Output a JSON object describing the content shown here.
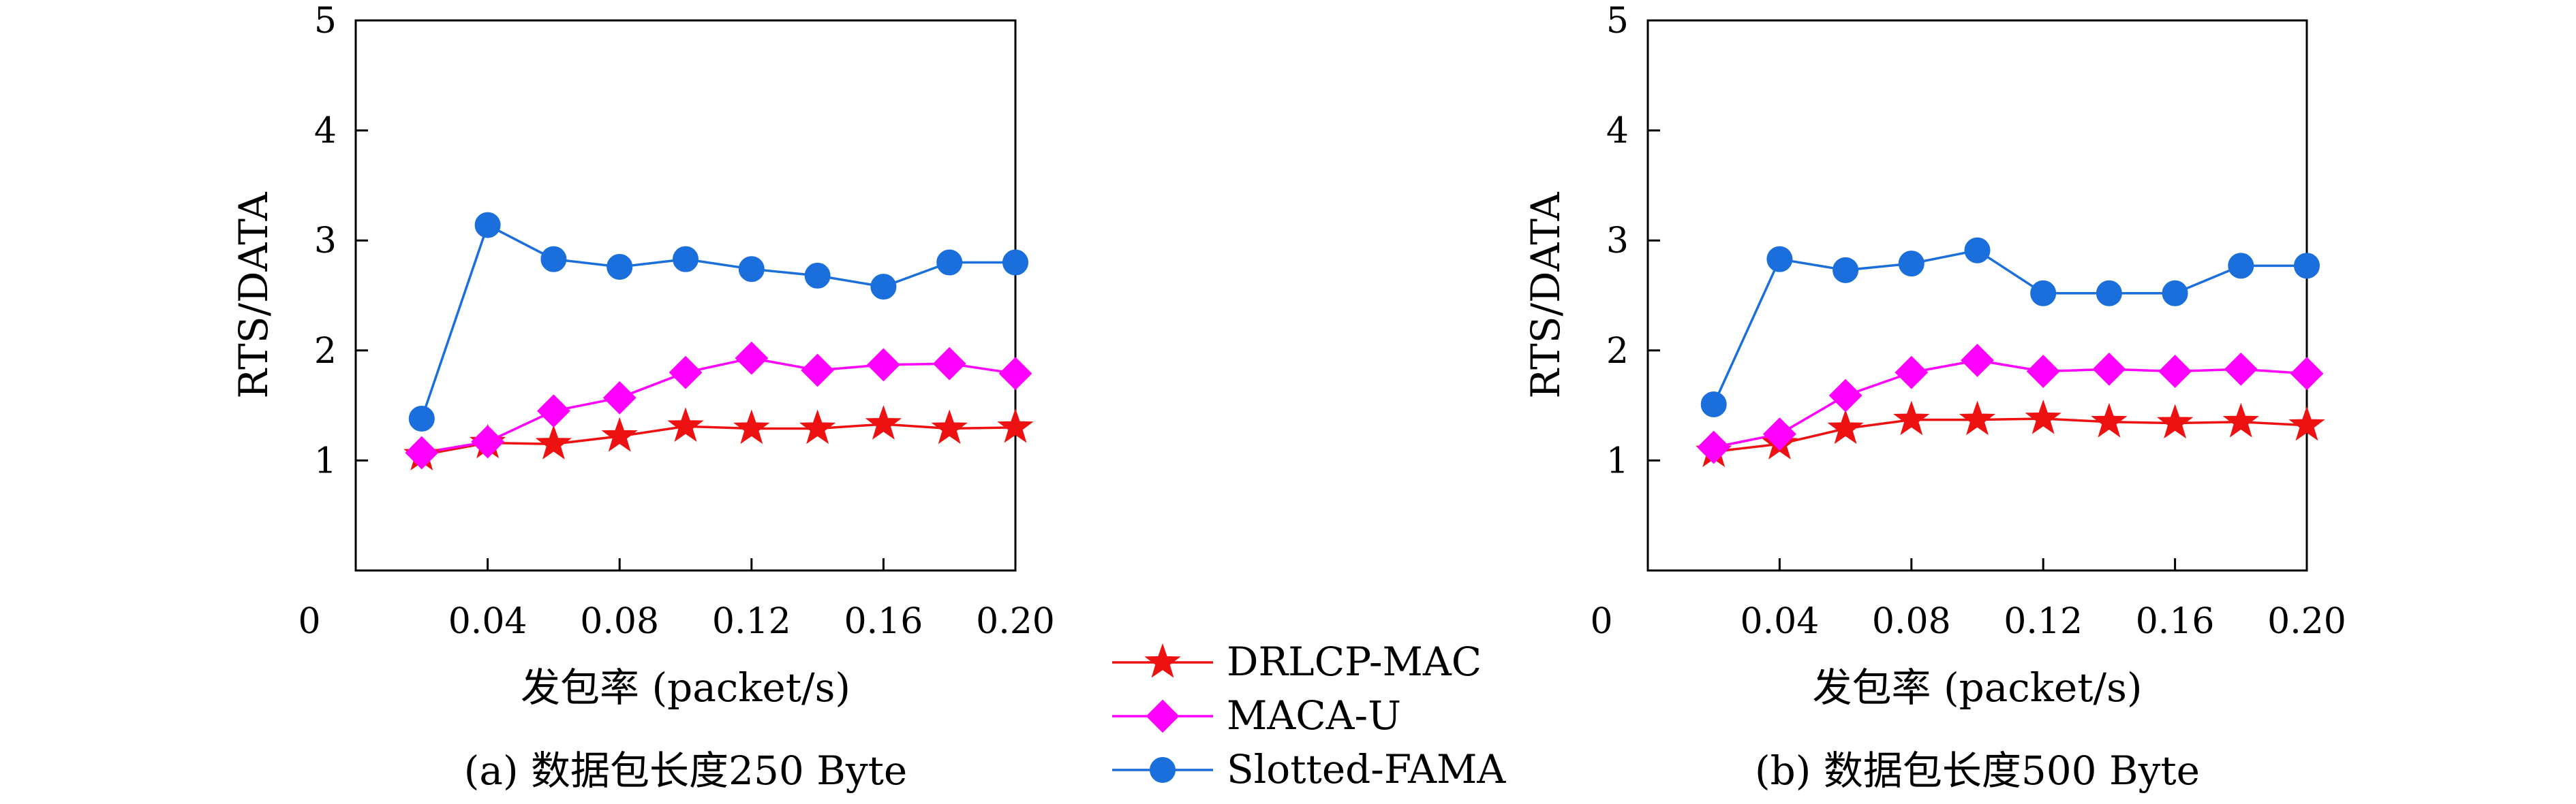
{
  "chart_data": [
    {
      "type": "line",
      "panel_caption": "(a) 数据包长度250 Byte",
      "xlabel": "发包率 (packet/s)",
      "ylabel": "RTS/DATA",
      "xlim": [
        0,
        0.2
      ],
      "ylim": [
        0,
        5
      ],
      "x_ticks": [
        "0",
        "0.04",
        "0.08",
        "0.12",
        "0.16",
        "0.20"
      ],
      "x_tick_values": [
        0,
        0.04,
        0.08,
        0.12,
        0.16,
        0.2
      ],
      "y_ticks": [
        "1",
        "2",
        "3",
        "4",
        "5"
      ],
      "y_tick_values": [
        1,
        2,
        3,
        4,
        5
      ],
      "x_origin_label": "0",
      "grid": false,
      "x": [
        0.02,
        0.04,
        0.06,
        0.08,
        0.1,
        0.12,
        0.14,
        0.16,
        0.18,
        0.2
      ],
      "series": [
        {
          "name": "DRLCP-MAC",
          "values": [
            1.05,
            1.16,
            1.15,
            1.22,
            1.31,
            1.29,
            1.29,
            1.33,
            1.29,
            1.3
          ]
        },
        {
          "name": "MACA-U",
          "values": [
            1.07,
            1.17,
            1.45,
            1.57,
            1.8,
            1.93,
            1.82,
            1.87,
            1.88,
            1.79
          ]
        },
        {
          "name": "Slotted-FAMA",
          "values": [
            1.38,
            3.14,
            2.83,
            2.76,
            2.83,
            2.74,
            2.68,
            2.58,
            2.8,
            2.8
          ]
        }
      ]
    },
    {
      "type": "line",
      "panel_caption": "(b) 数据包长度500 Byte",
      "xlabel": "发包率 (packet/s)",
      "ylabel": "RTS/DATA",
      "xlim": [
        0,
        0.2
      ],
      "ylim": [
        0,
        5
      ],
      "x_ticks": [
        "0",
        "0.04",
        "0.08",
        "0.12",
        "0.16",
        "0.20"
      ],
      "x_tick_values": [
        0,
        0.04,
        0.08,
        0.12,
        0.16,
        0.2
      ],
      "y_ticks": [
        "1",
        "2",
        "3",
        "4",
        "5"
      ],
      "y_tick_values": [
        1,
        2,
        3,
        4,
        5
      ],
      "x_origin_label": "0",
      "grid": false,
      "x": [
        0.02,
        0.04,
        0.06,
        0.08,
        0.1,
        0.12,
        0.14,
        0.16,
        0.18,
        0.2
      ],
      "series": [
        {
          "name": "DRLCP-MAC",
          "values": [
            1.08,
            1.15,
            1.29,
            1.37,
            1.37,
            1.38,
            1.35,
            1.34,
            1.35,
            1.32
          ]
        },
        {
          "name": "MACA-U",
          "values": [
            1.12,
            1.24,
            1.59,
            1.8,
            1.91,
            1.81,
            1.83,
            1.81,
            1.83,
            1.79
          ]
        },
        {
          "name": "Slotted-FAMA",
          "values": [
            1.51,
            2.83,
            2.73,
            2.79,
            2.91,
            2.52,
            2.52,
            2.52,
            2.77,
            2.77
          ]
        }
      ]
    }
  ],
  "legend": {
    "placement": "bottom-center",
    "entries": [
      {
        "name": "DRLCP-MAC",
        "color": "#ee1111",
        "marker": "star"
      },
      {
        "name": "MACA-U",
        "color": "#ff00ff",
        "marker": "diamond"
      },
      {
        "name": "Slotted-FAMA",
        "color": "#1a6fdc",
        "marker": "circle"
      }
    ]
  }
}
